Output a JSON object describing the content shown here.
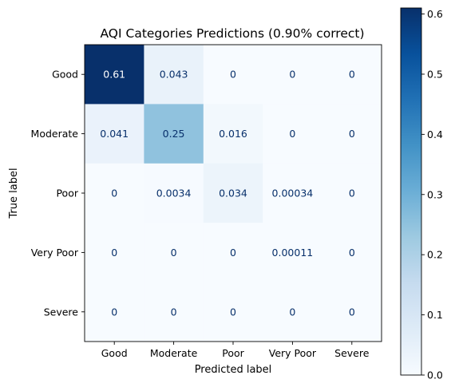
{
  "chart_data": {
    "type": "heatmap",
    "title": "AQI Categories Predictions (0.90% correct)",
    "xlabel": "Predicted label",
    "ylabel": "True label",
    "x_categories": [
      "Good",
      "Moderate",
      "Poor",
      "Very Poor",
      "Severe"
    ],
    "y_categories": [
      "Good",
      "Moderate",
      "Poor",
      "Very Poor",
      "Severe"
    ],
    "values": [
      [
        0.61,
        0.043,
        0,
        0,
        0
      ],
      [
        0.041,
        0.25,
        0.016,
        0,
        0
      ],
      [
        0,
        0.0034,
        0.034,
        0.00034,
        0
      ],
      [
        0,
        0,
        0,
        0.00011,
        0
      ],
      [
        0,
        0,
        0,
        0,
        0
      ]
    ],
    "value_labels": [
      [
        "0.61",
        "0.043",
        "0",
        "0",
        "0"
      ],
      [
        "0.041",
        "0.25",
        "0.016",
        "0",
        "0"
      ],
      [
        "0",
        "0.0034",
        "0.034",
        "0.00034",
        "0"
      ],
      [
        "0",
        "0",
        "0",
        "0.00011",
        "0"
      ],
      [
        "0",
        "0",
        "0",
        "0",
        "0"
      ]
    ],
    "colormap": "Blues",
    "color_range": [
      0,
      0.61
    ],
    "colorbar_ticks": [
      0.0,
      0.1,
      0.2,
      0.3,
      0.4,
      0.5,
      0.6
    ],
    "colorbar_tick_labels": [
      "0.0",
      "0.1",
      "0.2",
      "0.3",
      "0.4",
      "0.5",
      "0.6"
    ],
    "light_text_color": "#ffffff",
    "dark_text_color": "#08306b"
  }
}
